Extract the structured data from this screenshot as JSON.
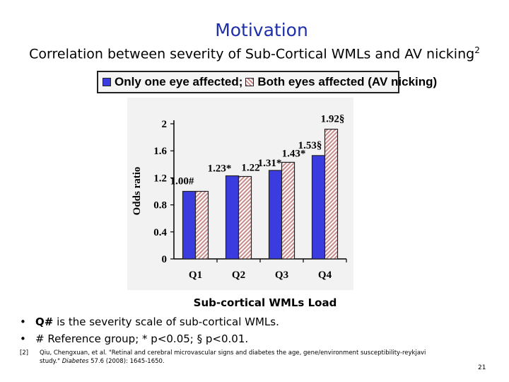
{
  "slide": {
    "title": "Motivation",
    "subtitle": "Correlation between severity of Sub-Cortical WMLs and AV nicking",
    "subtitle_superscript": "2",
    "bullets": [
      {
        "bold": "Q#",
        "text": " is the severity scale of sub-cortical WMLs."
      },
      {
        "bold": "",
        "text": "# Reference group; * p<0.05; § p<0.01."
      }
    ],
    "reference": {
      "number": "[2]",
      "line1": "Qiu, Chengxuan, et al. \"Retinal and cerebral microvascular signs and diabetes the age, gene/environment susceptibility-reykjavi",
      "line2_prefix": "study.\" ",
      "journal": "Diabetes",
      "line2_suffix": " 57.6 (2008): 1645-1650."
    },
    "page_number": "21"
  },
  "chart_data": {
    "type": "bar",
    "title": "",
    "xlabel": "Sub-cortical WMLs Load",
    "ylabel": "Odds ratio",
    "categories": [
      "Q1",
      "Q2",
      "Q3",
      "Q4"
    ],
    "ylim": [
      0,
      2
    ],
    "yticks": [
      0,
      0.4,
      0.8,
      1.2,
      1.6,
      2
    ],
    "ytick_labels": [
      "0",
      "0.4",
      "0.8",
      "1.2",
      "1.6",
      "2"
    ],
    "grid": false,
    "legend_position": "top",
    "series": [
      {
        "name": "Only one eye affected;",
        "color": "#3a3ce0",
        "pattern": "solid",
        "values": [
          1.0,
          1.23,
          1.31,
          1.53
        ],
        "labels": [
          "1.00#",
          "1.23*",
          "1.31*",
          "1.53§"
        ]
      },
      {
        "name": "Both eyes affected (AV nicking)",
        "color": "#c98a8a",
        "pattern": "hatched",
        "values": [
          1.0,
          1.22,
          1.43,
          1.92
        ],
        "labels": [
          "",
          "1.22",
          "1.43*",
          "1.92§"
        ]
      }
    ]
  }
}
